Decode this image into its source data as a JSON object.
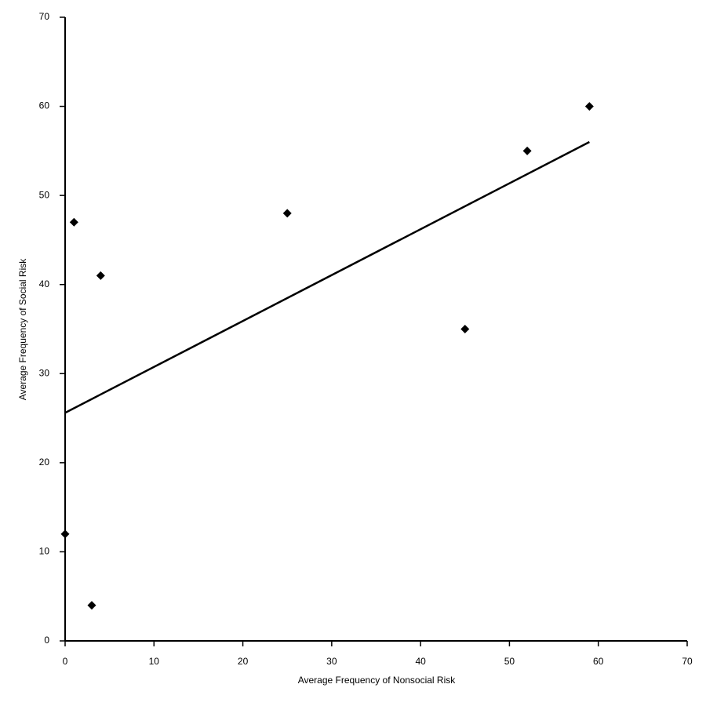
{
  "chart_data": {
    "type": "scatter",
    "xlabel": "Average Frequency of Nonsocial Risk",
    "ylabel": "Average Frequency of Social Risk",
    "x": [
      0,
      1,
      3,
      4,
      25,
      45,
      52,
      59
    ],
    "values": [
      12,
      47,
      4,
      41,
      48,
      35,
      55,
      60
    ],
    "color": "#000000",
    "trendline": {
      "x": [
        0,
        59
      ],
      "y": [
        25.6,
        56
      ]
    },
    "xlim": [
      0,
      70
    ],
    "xticks": [
      0,
      10,
      20,
      30,
      40,
      50,
      60,
      70
    ],
    "ylim": [
      0,
      70
    ],
    "yticks": [
      0,
      10,
      20,
      30,
      40,
      50,
      60,
      70
    ],
    "grid": false
  }
}
